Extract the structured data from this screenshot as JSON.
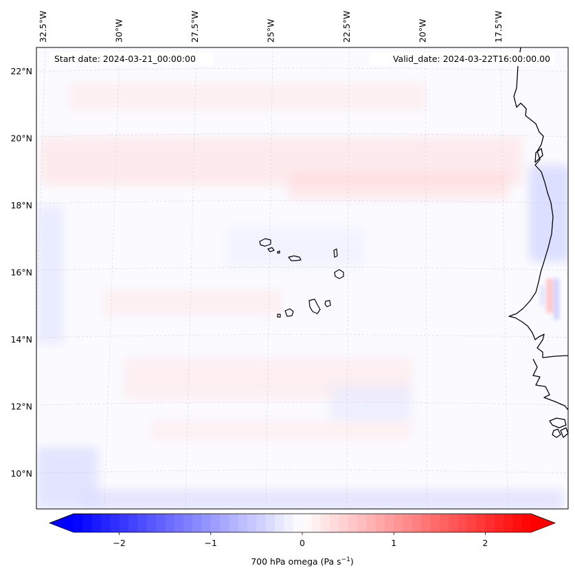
{
  "header": {
    "start_date": "Start date: 2024-03-21_00:00:00",
    "valid_date": "Valid_date: 2024-03-22T16:00:00.00"
  },
  "map": {
    "projection": "lambert-conformal",
    "lon_labels": [
      {
        "text": "32.5°W",
        "lon": -32.5
      },
      {
        "text": "30°W",
        "lon": -30
      },
      {
        "text": "27.5°W",
        "lon": -27.5
      },
      {
        "text": "25°W",
        "lon": -25
      },
      {
        "text": "22.5°W",
        "lon": -22.5
      },
      {
        "text": "20°W",
        "lon": -20
      },
      {
        "text": "17.5°W",
        "lon": -17.5
      }
    ],
    "lat_labels": [
      {
        "text": "22°N",
        "lat": 22
      },
      {
        "text": "20°N",
        "lat": 20
      },
      {
        "text": "18°N",
        "lat": 18
      },
      {
        "text": "16°N",
        "lat": 16
      },
      {
        "text": "14°N",
        "lat": 14
      },
      {
        "text": "12°N",
        "lat": 12
      },
      {
        "text": "10°N",
        "lat": 10
      }
    ],
    "gridlines": true,
    "features": [
      "Cape Verde islands",
      "West African coastline"
    ]
  },
  "colorbar": {
    "label_prefix": "700 hPa omega (Pa s",
    "label_exp": "−1",
    "label_suffix": ")",
    "ticks": [
      {
        "text": "−2",
        "value": -2
      },
      {
        "text": "−1",
        "value": -1
      },
      {
        "text": "0",
        "value": 0
      },
      {
        "text": "1",
        "value": 1
      },
      {
        "text": "2",
        "value": 2
      }
    ],
    "range": [
      -2.5,
      2.5
    ],
    "colormap": "bwr",
    "extend": "both",
    "colors": {
      "low": "#0000ff",
      "mid": "#ffffff",
      "high": "#ff0000"
    }
  }
}
